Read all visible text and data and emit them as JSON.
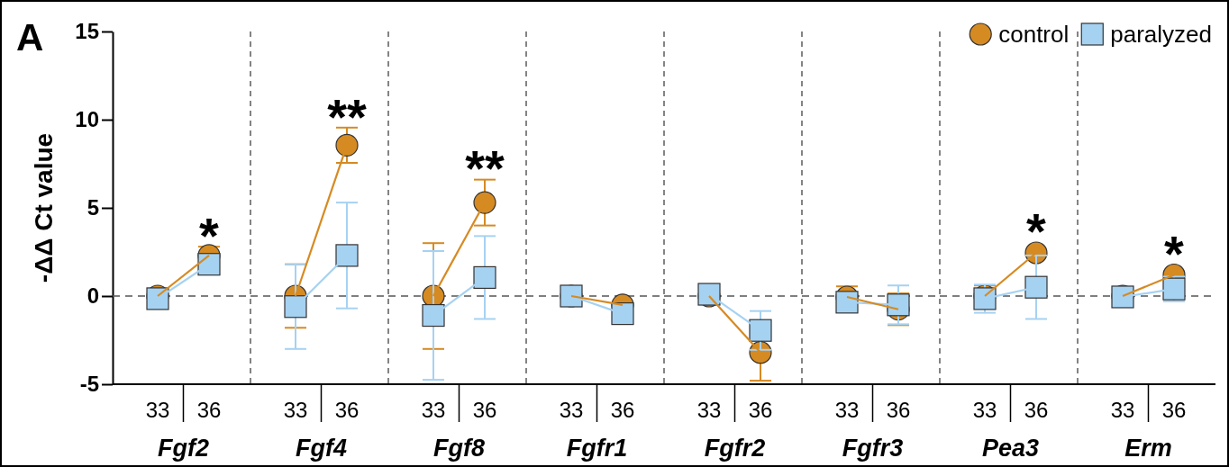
{
  "chart_data": [
    {
      "type": "line",
      "xlabel": "Fgf2",
      "ylabel": "-ΔΔ Ct value",
      "annotations": [
        "A"
      ],
      "categories": [
        "33",
        "36"
      ],
      "ylim": [
        -5,
        15
      ],
      "yticks": [
        -5,
        0,
        5,
        10,
        15
      ],
      "grid": false,
      "line_style": "solid",
      "ref_lines": [
        {
          "axis": "y",
          "value": 0,
          "line_style": "dashed",
          "color": "#555555"
        }
      ],
      "series": [
        {
          "color": "#d68a22",
          "marker": "circle",
          "values": [
            0,
            2.3
          ],
          "errors": [
            null,
            0.5
          ],
          "value_labels": [
            null,
            "*"
          ]
        },
        {
          "color": "#a6d2f2",
          "marker": "square",
          "values": [
            -0.15,
            1.8
          ]
        }
      ]
    },
    {
      "type": "line",
      "xlabel": "Fgf4",
      "categories": [
        "33",
        "36"
      ],
      "ylim": [
        -5,
        15
      ],
      "tick_labels": "x",
      "line_style": "solid",
      "ref_lines": [
        {
          "axis": "y",
          "value": 0,
          "line_style": "dashed",
          "color": "#555555"
        }
      ],
      "series": [
        {
          "color": "#d68a22",
          "marker": "circle",
          "values": [
            0,
            8.55
          ],
          "errors": [
            1.8,
            1.0
          ],
          "value_labels": [
            null,
            "**"
          ]
        },
        {
          "color": "#a6d2f2",
          "marker": "square",
          "values": [
            -0.6,
            2.3
          ],
          "errors": [
            2.4,
            3.0
          ]
        }
      ]
    },
    {
      "type": "line",
      "xlabel": "Fgf8",
      "categories": [
        "33",
        "36"
      ],
      "ylim": [
        -5,
        15
      ],
      "tick_labels": "x",
      "line_style": "solid",
      "ref_lines": [
        {
          "axis": "y",
          "value": 0,
          "line_style": "dashed",
          "color": "#555555"
        }
      ],
      "series": [
        {
          "color": "#d68a22",
          "marker": "circle",
          "values": [
            0,
            5.3
          ],
          "errors": [
            3.0,
            1.3
          ],
          "value_labels": [
            null,
            "**"
          ]
        },
        {
          "color": "#a6d2f2",
          "marker": "square",
          "values": [
            -1.1,
            1.05
          ],
          "errors": [
            3.65,
            2.35
          ]
        }
      ]
    },
    {
      "type": "line",
      "xlabel": "Fgfr1",
      "categories": [
        "33",
        "36"
      ],
      "ylim": [
        -5,
        15
      ],
      "tick_labels": "x",
      "line_style": "solid",
      "ref_lines": [
        {
          "axis": "y",
          "value": 0,
          "line_style": "dashed",
          "color": "#555555"
        }
      ],
      "series": [
        {
          "color": "#d68a22",
          "marker": "circle",
          "values": [
            0,
            -0.5
          ]
        },
        {
          "color": "#a6d2f2",
          "marker": "square",
          "values": [
            0,
            -1.0
          ]
        }
      ]
    },
    {
      "type": "line",
      "xlabel": "Fgfr2",
      "categories": [
        "33",
        "36"
      ],
      "ylim": [
        -5,
        15
      ],
      "tick_labels": "x",
      "line_style": "solid",
      "ref_lines": [
        {
          "axis": "y",
          "value": 0,
          "line_style": "dashed",
          "color": "#555555"
        }
      ],
      "series": [
        {
          "color": "#d68a22",
          "marker": "circle",
          "values": [
            0,
            -3.2
          ],
          "errors": [
            null,
            1.6
          ]
        },
        {
          "color": "#a6d2f2",
          "marker": "square",
          "values": [
            0.1,
            -1.95
          ],
          "errors": [
            null,
            1.1
          ]
        }
      ]
    },
    {
      "type": "line",
      "xlabel": "Fgfr3",
      "categories": [
        "33",
        "36"
      ],
      "ylim": [
        -5,
        15
      ],
      "tick_labels": "x",
      "line_style": "solid",
      "ref_lines": [
        {
          "axis": "y",
          "value": 0,
          "line_style": "dashed",
          "color": "#555555"
        }
      ],
      "series": [
        {
          "color": "#d68a22",
          "marker": "circle",
          "values": [
            -0.05,
            -0.75
          ],
          "errors": [
            0.6,
            0.9
          ]
        },
        {
          "color": "#a6d2f2",
          "marker": "square",
          "values": [
            -0.35,
            -0.5
          ],
          "errors": [
            null,
            1.1
          ]
        }
      ]
    },
    {
      "type": "line",
      "xlabel": "Pea3",
      "categories": [
        "33",
        "36"
      ],
      "ylim": [
        -5,
        15
      ],
      "tick_labels": "x",
      "line_style": "solid",
      "ref_lines": [
        {
          "axis": "y",
          "value": 0,
          "line_style": "dashed",
          "color": "#555555"
        }
      ],
      "series": [
        {
          "color": "#d68a22",
          "marker": "circle",
          "values": [
            0,
            2.45
          ],
          "errors": [
            0.6,
            null
          ],
          "value_labels": [
            null,
            "*"
          ]
        },
        {
          "color": "#a6d2f2",
          "marker": "square",
          "values": [
            -0.15,
            0.5
          ],
          "errors": [
            0.8,
            1.8
          ]
        }
      ]
    },
    {
      "type": "line",
      "xlabel": "Erm",
      "categories": [
        "33",
        "36"
      ],
      "ylim": [
        -5,
        15
      ],
      "tick_labels": "x",
      "legend": "top left",
      "line_style": "solid",
      "ref_lines": [
        {
          "axis": "y",
          "value": 0,
          "line_style": "dashed",
          "color": "#555555"
        }
      ],
      "series": [
        {
          "name": "control",
          "color": "#d68a22",
          "marker": "circle",
          "values": [
            0,
            1.2
          ],
          "value_labels": [
            null,
            "*"
          ]
        },
        {
          "name": "paralyzed",
          "color": "#a6d2f2",
          "marker": "square",
          "values": [
            -0.05,
            0.4
          ],
          "errors": [
            null,
            0.7
          ]
        }
      ]
    }
  ]
}
